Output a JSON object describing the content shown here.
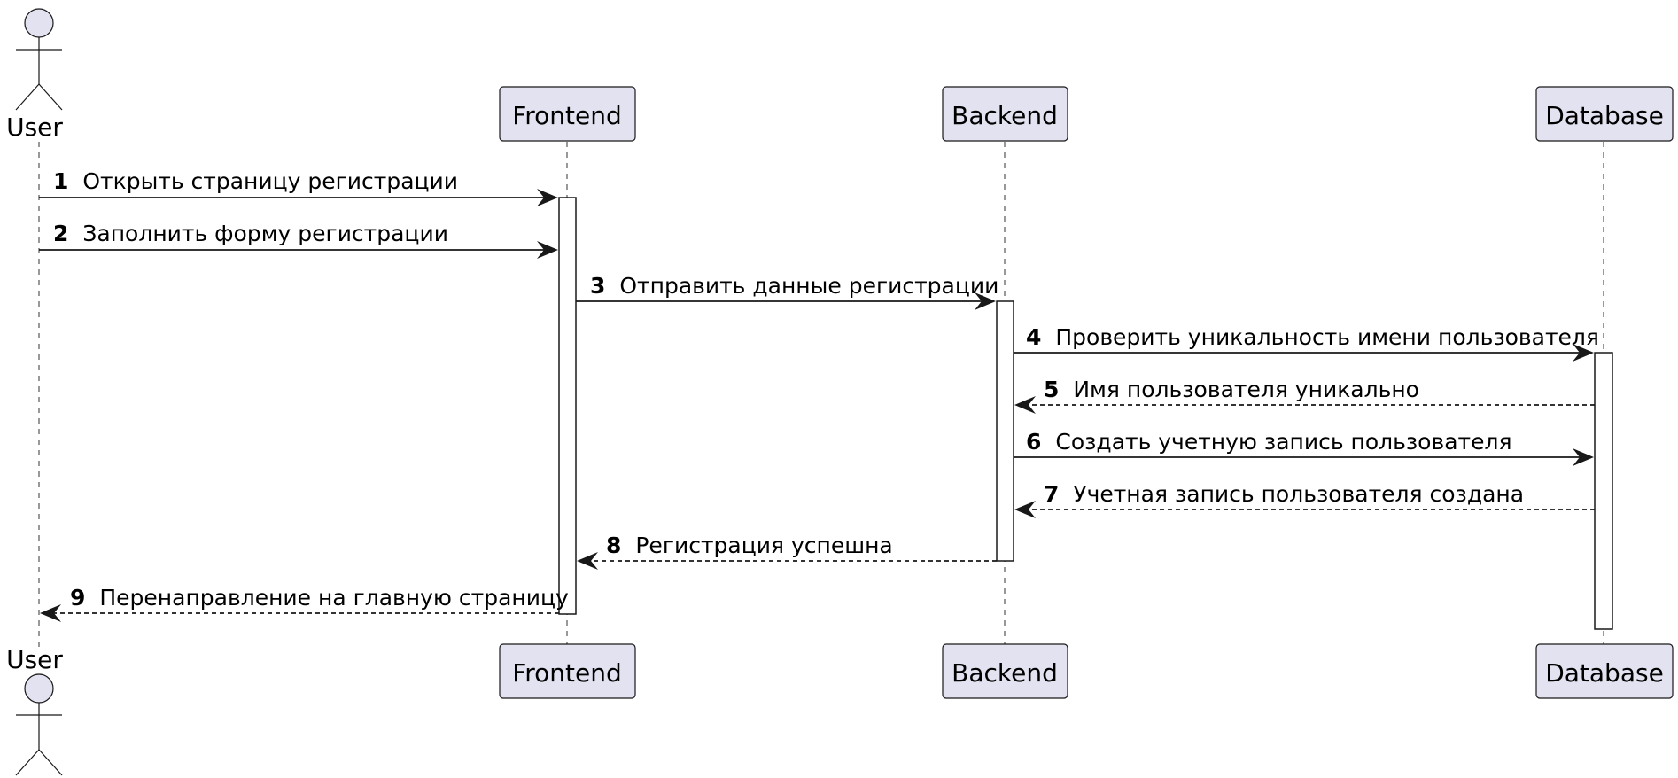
{
  "participants": [
    {
      "id": "user",
      "label": "User",
      "kind": "actor"
    },
    {
      "id": "frontend",
      "label": "Frontend",
      "kind": "participant"
    },
    {
      "id": "backend",
      "label": "Backend",
      "kind": "participant"
    },
    {
      "id": "database",
      "label": "Database",
      "kind": "participant"
    }
  ],
  "messages": [
    {
      "num": "1",
      "text": "Открыть страницу регистрации",
      "from": "user",
      "to": "frontend",
      "style": "solid"
    },
    {
      "num": "2",
      "text": "Заполнить форму регистрации",
      "from": "user",
      "to": "frontend",
      "style": "solid"
    },
    {
      "num": "3",
      "text": "Отправить данные регистрации",
      "from": "frontend",
      "to": "backend",
      "style": "solid"
    },
    {
      "num": "4",
      "text": "Проверить уникальность имени пользователя",
      "from": "backend",
      "to": "database",
      "style": "solid"
    },
    {
      "num": "5",
      "text": "Имя пользователя уникально",
      "from": "database",
      "to": "backend",
      "style": "dashed"
    },
    {
      "num": "6",
      "text": "Создать учетную запись пользователя",
      "from": "backend",
      "to": "database",
      "style": "solid"
    },
    {
      "num": "7",
      "text": "Учетная запись пользователя создана",
      "from": "database",
      "to": "backend",
      "style": "dashed"
    },
    {
      "num": "8",
      "text": "Регистрация успешна",
      "from": "backend",
      "to": "frontend",
      "style": "dashed"
    },
    {
      "num": "9",
      "text": "Перенаправление на главную страницу",
      "from": "frontend",
      "to": "user",
      "style": "dashed"
    }
  ],
  "colors": {
    "participant_fill": "#e2e2f0",
    "stroke": "#181818",
    "lifeline": "#555555",
    "text": "#000000"
  }
}
